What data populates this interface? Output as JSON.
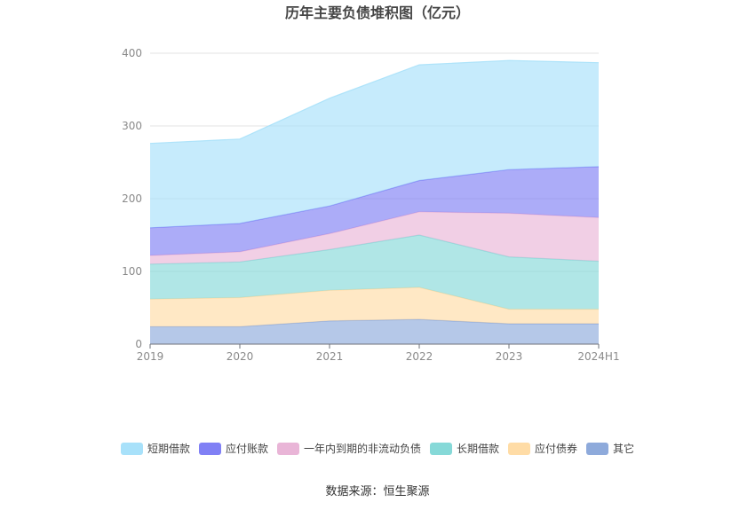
{
  "chart_data": {
    "type": "area",
    "stacked": true,
    "title": "历年主要负债堆积图（亿元）",
    "categories": [
      "2019",
      "2020",
      "2021",
      "2022",
      "2023",
      "2024H1"
    ],
    "ylim": [
      0,
      400
    ],
    "yticks": [
      0,
      100,
      200,
      300,
      400
    ],
    "grid": true,
    "legend_position": "bottom",
    "series": [
      {
        "name": "其它",
        "color": "#8eaadb",
        "values": [
          24,
          24,
          32,
          34,
          28,
          28
        ]
      },
      {
        "name": "应付债券",
        "color": "#ffdca6",
        "values": [
          38,
          40,
          42,
          44,
          20,
          20
        ]
      },
      {
        "name": "长期借款",
        "color": "#86d9d8",
        "values": [
          48,
          49,
          56,
          72,
          72,
          66
        ]
      },
      {
        "name": "一年内到期的非流动负债",
        "color": "#e9b5d7",
        "values": [
          12,
          14,
          22,
          32,
          60,
          60
        ]
      },
      {
        "name": "应付账款",
        "color": "#8080f5",
        "values": [
          38,
          39,
          38,
          43,
          60,
          70
        ]
      },
      {
        "name": "短期借款",
        "color": "#a8e1fa",
        "values": [
          116,
          116,
          148,
          159,
          150,
          143
        ]
      }
    ],
    "legend_order": [
      "短期借款",
      "应付账款",
      "一年内到期的非流动负债",
      "长期借款",
      "应付债券",
      "其它"
    ]
  },
  "footer": {
    "source": "数据来源：恒生聚源"
  }
}
